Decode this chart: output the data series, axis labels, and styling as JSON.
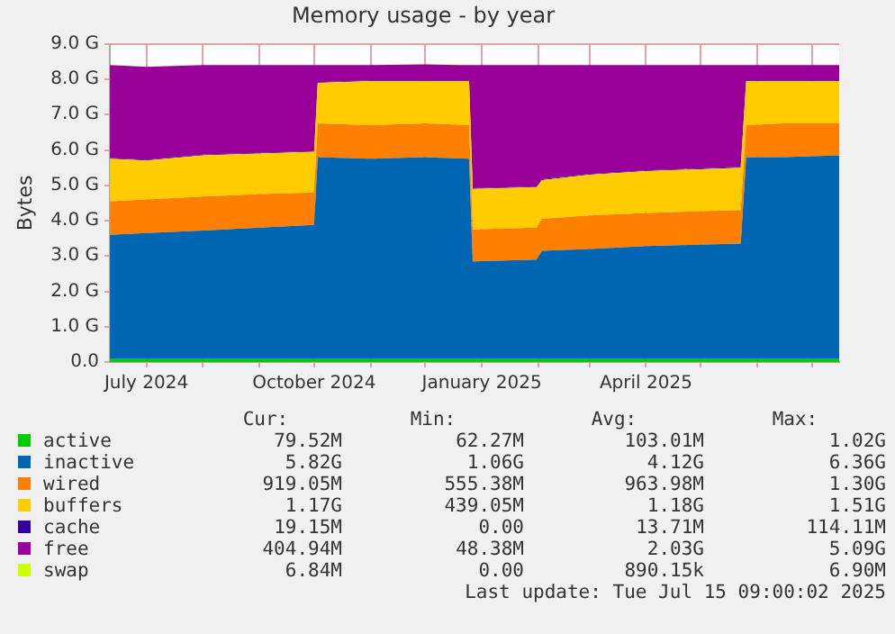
{
  "chart_data": {
    "type": "area",
    "stacked": true,
    "title": "Memory usage - by year",
    "ylabel": "Bytes",
    "x": [
      "2024-06-11",
      "2024-07-01",
      "2024-08-01",
      "2024-09-01",
      "2024-10-01",
      "2024-10-03",
      "2024-11-01",
      "2024-12-01",
      "2024-12-25",
      "2024-12-27",
      "2025-01-31",
      "2025-02-03",
      "2025-03-01",
      "2025-04-01",
      "2025-05-23",
      "2025-05-26",
      "2025-06-15",
      "2025-07-16"
    ],
    "series": [
      {
        "name": "active",
        "color": "#00cc00",
        "values": [
          0.08,
          0.08,
          0.08,
          0.08,
          0.08,
          0.08,
          0.08,
          0.08,
          0.08,
          0.08,
          0.08,
          0.08,
          0.08,
          0.08,
          0.08,
          0.08,
          0.08,
          0.08
        ]
      },
      {
        "name": "inactive",
        "color": "#0066b3",
        "values": [
          3.52,
          3.57,
          3.64,
          3.72,
          3.8,
          5.72,
          5.67,
          5.72,
          5.67,
          2.77,
          2.82,
          3.07,
          3.12,
          3.2,
          3.27,
          5.72,
          5.72,
          5.77
        ]
      },
      {
        "name": "wired",
        "color": "#ff8000",
        "values": [
          0.95,
          0.95,
          0.96,
          0.95,
          0.92,
          0.95,
          0.95,
          0.95,
          0.95,
          0.9,
          0.9,
          0.9,
          0.95,
          0.94,
          0.95,
          0.9,
          0.95,
          0.9
        ]
      },
      {
        "name": "buffers",
        "color": "#ffcc00",
        "values": [
          1.2,
          1.1,
          1.17,
          1.15,
          1.15,
          1.15,
          1.25,
          1.2,
          1.25,
          1.15,
          1.15,
          1.1,
          1.15,
          1.18,
          1.2,
          1.25,
          1.2,
          1.2
        ]
      },
      {
        "name": "cache",
        "color": "#330099",
        "values": [
          0.02,
          0.02,
          0.02,
          0.02,
          0.02,
          0.02,
          0.02,
          0.02,
          0.02,
          0.02,
          0.02,
          0.02,
          0.02,
          0.02,
          0.02,
          0.02,
          0.02,
          0.02
        ]
      },
      {
        "name": "free",
        "color": "#990099",
        "values": [
          2.63,
          2.63,
          2.53,
          2.48,
          2.43,
          0.48,
          0.43,
          0.45,
          0.43,
          3.48,
          3.43,
          3.23,
          3.08,
          2.98,
          2.88,
          0.43,
          0.43,
          0.43
        ]
      },
      {
        "name": "swap",
        "color": "#ccff00",
        "values": [
          0.01,
          0.01,
          0.01,
          0.01,
          0.01,
          0.01,
          0.01,
          0.01,
          0.01,
          0.01,
          0.01,
          0.01,
          0.01,
          0.01,
          0.01,
          0.01,
          0.01,
          0.01
        ]
      }
    ],
    "xlim": [
      "2024-06-11",
      "2025-07-16"
    ],
    "xticks": [
      {
        "value": "2024-07-01",
        "label": "July 2024"
      },
      {
        "value": "2024-08-01",
        "label": null
      },
      {
        "value": "2024-09-01",
        "label": null
      },
      {
        "value": "2024-10-01",
        "label": "October 2024"
      },
      {
        "value": "2024-11-01",
        "label": null
      },
      {
        "value": "2024-12-01",
        "label": null
      },
      {
        "value": "2025-01-01",
        "label": "January 2025"
      },
      {
        "value": "2025-02-01",
        "label": null
      },
      {
        "value": "2025-03-01",
        "label": null
      },
      {
        "value": "2025-04-01",
        "label": "April 2025"
      },
      {
        "value": "2025-05-01",
        "label": null
      },
      {
        "value": "2025-06-01",
        "label": null
      },
      {
        "value": "2025-07-01",
        "label": null
      }
    ],
    "ylim": [
      0,
      9
    ],
    "yticks": [
      {
        "value": 0,
        "label": "0.0"
      },
      {
        "value": 1,
        "label": "1.0 G"
      },
      {
        "value": 2,
        "label": "2.0 G"
      },
      {
        "value": 3,
        "label": "3.0 G"
      },
      {
        "value": 4,
        "label": "4.0 G"
      },
      {
        "value": 5,
        "label": "5.0 G"
      },
      {
        "value": 6,
        "label": "6.0 G"
      },
      {
        "value": 7,
        "label": "7.0 G"
      },
      {
        "value": 8,
        "label": "8.0 G"
      },
      {
        "value": 9,
        "label": "9.0 G"
      }
    ],
    "grid": true,
    "legend": "bottom",
    "marker": "none",
    "annotations": [
      "Cur:",
      "Min:",
      "Avg:",
      "Max:",
      "79.52M",
      "62.27M",
      "103.01M",
      "1.02G",
      "5.82G",
      "1.06G",
      "4.12G",
      "6.36G",
      "919.05M",
      "555.38M",
      "963.98M",
      "1.30G",
      "1.17G",
      "439.05M",
      "1.18G",
      "1.51G",
      "19.15M",
      "0.00",
      "13.71M",
      "114.11M",
      "404.94M",
      "48.38M",
      "2.03G",
      "5.09G",
      "6.84M",
      "0.00",
      "890.15k",
      "6.90M",
      "Last update: Tue Jul 15 09:00:02 2025"
    ]
  }
}
